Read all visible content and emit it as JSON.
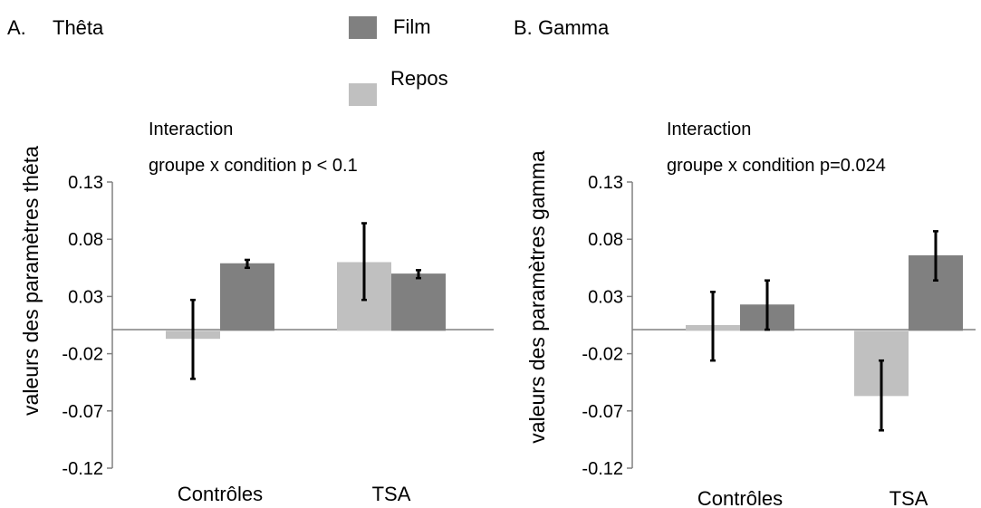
{
  "legend": {
    "items": [
      {
        "label": "Film",
        "color": "#808080"
      },
      {
        "label": "Repos",
        "color": "#c0c0c0"
      }
    ]
  },
  "chart_data": [
    {
      "type": "bar",
      "panel_label": "A.",
      "title": "Thêta",
      "annotation": [
        "Interaction",
        "groupe x condition p < 0.1"
      ],
      "ylabel": "valeurs des paramètres thêta",
      "xlabel": "",
      "categories": [
        "Contrôles",
        "TSA"
      ],
      "yticks": [
        "0.13",
        "0.08",
        "0.03",
        "-0.02",
        "-0.07",
        "-0.12"
      ],
      "ylim": [
        -0.12,
        0.13
      ],
      "grid": false,
      "series": [
        {
          "name": "Repos",
          "color": "#c0c0c0",
          "values": [
            -0.007,
            0.06
          ],
          "error_low": [
            -0.042,
            0.027
          ],
          "error_high": [
            0.027,
            0.094
          ]
        },
        {
          "name": "Film",
          "color": "#808080",
          "values": [
            0.059,
            0.05
          ],
          "error_low": [
            0.055,
            0.046
          ],
          "error_high": [
            0.062,
            0.053
          ]
        }
      ]
    },
    {
      "type": "bar",
      "panel_label": "B.",
      "title": "Gamma",
      "annotation": [
        "Interaction",
        "groupe x condition p=0.024"
      ],
      "ylabel": "valeurs des paramètres gamma",
      "xlabel": "",
      "categories": [
        "Contrôles",
        "TSA"
      ],
      "yticks": [
        "0.13",
        "0.08",
        "0.03",
        "-0.02",
        "-0.07",
        "-0.12"
      ],
      "ylim": [
        -0.12,
        0.13
      ],
      "grid": false,
      "series": [
        {
          "name": "Repos",
          "color": "#c0c0c0",
          "values": [
            0.005,
            -0.057
          ],
          "error_low": [
            -0.026,
            -0.087
          ],
          "error_high": [
            0.034,
            -0.026
          ]
        },
        {
          "name": "Film",
          "color": "#808080",
          "values": [
            0.023,
            0.066
          ],
          "error_low": [
            0.001,
            0.044
          ],
          "error_high": [
            0.044,
            0.087
          ]
        }
      ]
    }
  ]
}
